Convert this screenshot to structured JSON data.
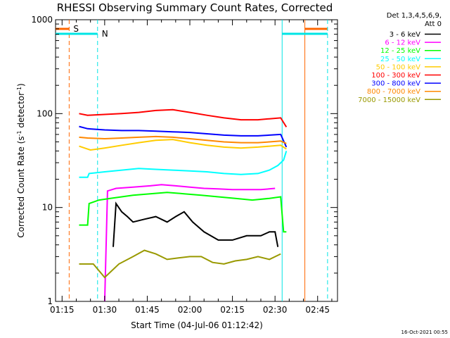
{
  "chart_data": {
    "type": "line",
    "title": "RHESSI Observing Summary Count Rates, Corrected",
    "xlabel": "Start Time (04-Jul-06 01:12:42)",
    "ylabel_main": "Corrected Count Rate (s",
    "ylabel_sup1": "-1",
    "ylabel_mid": " detector",
    "ylabel_sup2": "-1",
    "ylabel_end": ")",
    "yscale": "log",
    "ylim": [
      1,
      1000
    ],
    "xlim": [
      "01:12:42",
      "02:52:00"
    ],
    "x_ticks": [
      "01:15",
      "01:30",
      "01:45",
      "02:00",
      "02:15",
      "02:30",
      "02:45"
    ],
    "x_tick_minutes": [
      75,
      90,
      105,
      120,
      135,
      150,
      165
    ],
    "y_ticks": [
      "1",
      "10",
      "100",
      "1000"
    ],
    "legend_header": [
      "Det 1,3,4,5,6,9,",
      "Att 0"
    ],
    "legend_placement": "top-right outside",
    "timestamp": "16-Oct-2021 00:55",
    "series": [
      {
        "name": "3 - 6 keV",
        "color": "#000000",
        "x": [
          93,
          94,
          96,
          98,
          100,
          104,
          108,
          112,
          115,
          118,
          121,
          125,
          130,
          135,
          140,
          145,
          148,
          150,
          151
        ],
        "values": [
          3.8,
          11,
          9,
          8,
          7,
          7.5,
          8,
          7,
          8,
          9,
          7,
          5.5,
          4.5,
          4.5,
          5,
          5,
          5.5,
          5.5,
          3.8
        ]
      },
      {
        "name": "6 - 12 keV",
        "color": "#ff00ff",
        "x": [
          90,
          91,
          94,
          100,
          106,
          110,
          115,
          120,
          125,
          130,
          135,
          140,
          145,
          150
        ],
        "values": [
          1,
          15,
          16,
          16.5,
          17,
          17.5,
          17,
          16.5,
          16,
          15.8,
          15.5,
          15.5,
          15.5,
          16
        ]
      },
      {
        "name": "12 - 25 keV",
        "color": "#00ff00",
        "x": [
          81,
          84,
          84.5,
          88,
          92,
          96,
          100,
          106,
          112,
          118,
          124,
          130,
          136,
          142,
          148,
          152,
          153,
          154
        ],
        "values": [
          6.5,
          6.5,
          11,
          12,
          12.5,
          13,
          13.5,
          14,
          14.5,
          14,
          13.5,
          13,
          12.5,
          12,
          12.5,
          13,
          5.5,
          5.5
        ]
      },
      {
        "name": "25 - 50 keV",
        "color": "#00ffff",
        "x": [
          81,
          84,
          84.5,
          90,
          96,
          102,
          108,
          114,
          120,
          126,
          132,
          138,
          144,
          148,
          151,
          153,
          154
        ],
        "values": [
          21,
          21,
          23,
          24,
          25,
          26,
          25.5,
          25,
          24.5,
          24,
          23,
          22.5,
          23,
          25,
          28,
          32,
          40
        ]
      },
      {
        "name": "50 - 100 keV",
        "color": "#ffcc00",
        "x": [
          81,
          85,
          90,
          96,
          102,
          108,
          114,
          120,
          126,
          132,
          138,
          144,
          148,
          152,
          154
        ],
        "values": [
          45,
          41,
          43,
          46,
          49,
          52,
          53,
          49,
          46,
          44,
          43,
          44,
          45,
          46,
          42
        ]
      },
      {
        "name": "100 - 300 keV",
        "color": "#ff0000",
        "x": [
          81,
          84,
          90,
          96,
          102,
          108,
          114,
          120,
          126,
          132,
          138,
          144,
          148,
          152,
          154
        ],
        "values": [
          100,
          96,
          98,
          100,
          103,
          108,
          110,
          103,
          96,
          90,
          86,
          86,
          88,
          90,
          72
        ]
      },
      {
        "name": "300 - 800 keV",
        "color": "#0000ff",
        "x": [
          81,
          84,
          90,
          96,
          102,
          108,
          114,
          120,
          126,
          132,
          138,
          144,
          148,
          152,
          154
        ],
        "values": [
          73,
          69,
          67,
          66,
          66,
          65,
          64,
          63,
          61,
          59,
          58,
          58,
          59,
          60,
          44
        ]
      },
      {
        "name": "800 - 7000 keV",
        "color": "#ff8800",
        "x": [
          81,
          84,
          90,
          96,
          102,
          108,
          114,
          120,
          126,
          132,
          138,
          144,
          148,
          152,
          154
        ],
        "values": [
          56,
          55,
          54,
          55,
          56,
          57,
          56,
          54,
          52,
          50,
          49,
          49,
          50,
          51,
          48
        ]
      },
      {
        "name": "7000 - 15000 keV",
        "color": "#999900",
        "x": [
          81,
          86,
          90,
          95,
          100,
          104,
          108,
          112,
          116,
          120,
          124,
          128,
          132,
          136,
          140,
          144,
          148,
          152
        ],
        "values": [
          2.5,
          2.5,
          1.8,
          2.5,
          3,
          3.5,
          3.2,
          2.8,
          2.9,
          3,
          3,
          2.6,
          2.5,
          2.7,
          2.8,
          3,
          2.8,
          3.2
        ]
      }
    ],
    "annotations": [
      {
        "label": "S",
        "color": "#ff6600",
        "x_dash": 77.5,
        "bar": [
          72.7,
          77.5
        ],
        "bar2": [
          160.5,
          168.5
        ],
        "x_solid": 160.5
      },
      {
        "label": "N",
        "color": "#00e5e5",
        "x_dash": 87.5,
        "bar": [
          72.7,
          87.5
        ],
        "bar2": [
          152.5,
          168.5
        ],
        "x_solid": 152.5,
        "x_dash2": 168.5
      }
    ]
  }
}
